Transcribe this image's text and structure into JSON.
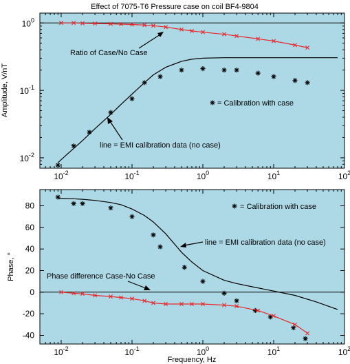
{
  "chart_data": [
    {
      "type": "line",
      "title": "Effect of 7075-T6 Pressure case on coil BF4-9804",
      "ylabel": "Amplitude, V/nT",
      "xscale": "log",
      "yscale": "log",
      "xlim": [
        0.005,
        100
      ],
      "ylim": [
        0.007,
        1.4
      ],
      "xticks": [
        {
          "value": 0.01,
          "base": "10",
          "exp": "-2"
        },
        {
          "value": 0.1,
          "base": "10",
          "exp": "-1"
        },
        {
          "value": 1,
          "base": "10",
          "exp": "0"
        },
        {
          "value": 10,
          "base": "10",
          "exp": "1"
        },
        {
          "value": 100,
          "base": "10",
          "exp": "2"
        }
      ],
      "yticks": [
        {
          "value": 1,
          "base": "10",
          "exp": "0"
        },
        {
          "value": 0.1,
          "base": "10",
          "exp": "-1"
        },
        {
          "value": 0.01,
          "base": "10",
          "exp": "-2"
        }
      ],
      "background": "#add8e6",
      "reference_line": {
        "value": 1
      },
      "series": [
        {
          "color": "#000000",
          "style": "line",
          "x": [
            0.009,
            0.013,
            0.02,
            0.03,
            0.05,
            0.07,
            0.1,
            0.15,
            0.2,
            0.3,
            0.5,
            0.7,
            1,
            2,
            5,
            10,
            30,
            80
          ],
          "y": [
            0.0085,
            0.012,
            0.018,
            0.027,
            0.044,
            0.062,
            0.088,
            0.13,
            0.17,
            0.22,
            0.27,
            0.29,
            0.3,
            0.305,
            0.305,
            0.305,
            0.305,
            0.305
          ]
        },
        {
          "color": "#000000",
          "style": "asterisk",
          "x": [
            0.009,
            0.015,
            0.025,
            0.05,
            0.1,
            0.15,
            0.25,
            0.5,
            1,
            2,
            3,
            6,
            10,
            20,
            30
          ],
          "y": [
            0.0078,
            0.015,
            0.024,
            0.047,
            0.075,
            0.13,
            0.16,
            0.2,
            0.21,
            0.2,
            0.2,
            0.18,
            0.16,
            0.14,
            0.13
          ]
        },
        {
          "color": "#e8272a",
          "style": "line-x",
          "x": [
            0.01,
            0.015,
            0.02,
            0.03,
            0.05,
            0.07,
            0.1,
            0.15,
            0.2,
            0.3,
            0.5,
            0.7,
            1,
            2,
            3,
            6,
            10,
            20,
            30
          ],
          "y": [
            1,
            1,
            0.99,
            0.98,
            0.97,
            0.96,
            0.95,
            0.93,
            0.91,
            0.87,
            0.8,
            0.76,
            0.73,
            0.68,
            0.64,
            0.58,
            0.54,
            0.47,
            0.43
          ]
        }
      ],
      "annotations": [
        {
          "text": "Ratio of Case/No Case",
          "arrow_to": [
            0.25,
            0.87
          ]
        },
        {
          "text": "= Calibration with case",
          "marker": "asterisk"
        },
        {
          "text": "line = EMI calibration data (no case)",
          "arrow_to": [
            0.09,
            0.055
          ]
        }
      ]
    },
    {
      "type": "line",
      "xlabel": "Frequency, Hz",
      "ylabel": "Phase, °",
      "xscale": "log",
      "xlim": [
        0.005,
        100
      ],
      "ylim": [
        -48,
        95
      ],
      "xticks": [
        {
          "value": 0.01,
          "base": "10",
          "exp": "-2"
        },
        {
          "value": 0.1,
          "base": "10",
          "exp": "-1"
        },
        {
          "value": 1,
          "base": "10",
          "exp": "0"
        },
        {
          "value": 10,
          "base": "10",
          "exp": "1"
        },
        {
          "value": 100,
          "base": "10",
          "exp": "2"
        }
      ],
      "yticks": [
        80,
        60,
        40,
        20,
        0,
        -20,
        -40
      ],
      "background": "#add8e6",
      "reference_line": {
        "value": 0
      },
      "series": [
        {
          "color": "#000000",
          "style": "line",
          "x": [
            0.009,
            0.015,
            0.02,
            0.03,
            0.05,
            0.07,
            0.1,
            0.15,
            0.2,
            0.3,
            0.5,
            0.7,
            1,
            2,
            3,
            5,
            10,
            20,
            40,
            80
          ],
          "y": [
            87,
            86.5,
            86,
            85,
            83,
            81,
            77,
            71,
            65,
            54,
            37,
            28,
            20,
            11,
            8,
            5,
            1,
            -3,
            -9,
            -16
          ]
        },
        {
          "color": "#000000",
          "style": "asterisk",
          "x": [
            0.009,
            0.015,
            0.02,
            0.05,
            0.1,
            0.2,
            0.25,
            0.55,
            1,
            2,
            3,
            5.5,
            9,
            19,
            28
          ],
          "y": [
            88,
            82,
            82,
            78,
            70,
            53,
            42,
            23,
            10,
            -1,
            -8,
            -17,
            -23,
            -33,
            -43
          ]
        },
        {
          "color": "#e8272a",
          "style": "line-x",
          "x": [
            0.01,
            0.015,
            0.02,
            0.03,
            0.05,
            0.07,
            0.1,
            0.15,
            0.2,
            0.3,
            0.5,
            0.7,
            1,
            2,
            3,
            6,
            10,
            20,
            30
          ],
          "y": [
            0,
            -1,
            -1.5,
            -3,
            -4,
            -5,
            -6,
            -8,
            -10,
            -11,
            -11,
            -11,
            -11,
            -12,
            -13,
            -17,
            -22,
            -30,
            -38
          ]
        }
      ],
      "annotations": [
        {
          "text": "= Calibration with case",
          "marker": "asterisk"
        },
        {
          "text": "line = EMI calibration data (no case)",
          "arrow_to": [
            0.6,
            27
          ]
        },
        {
          "text": "Phase difference Case-No Case",
          "arrow_to": [
            0.17,
            -11
          ]
        }
      ]
    }
  ]
}
